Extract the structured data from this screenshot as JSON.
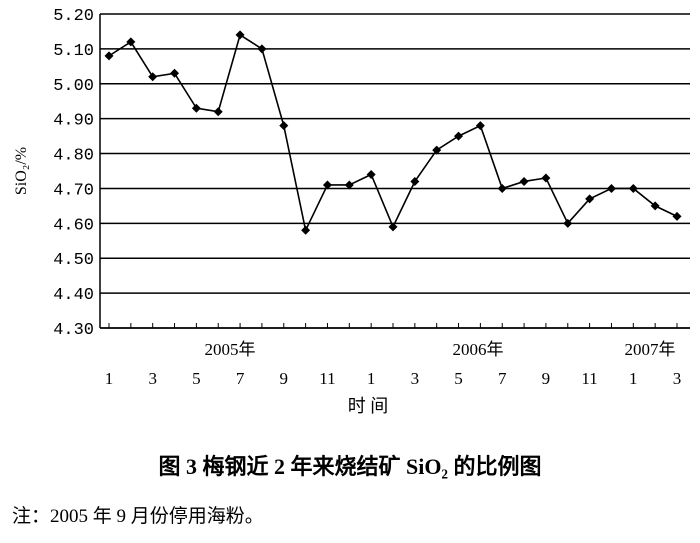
{
  "chart_data": {
    "type": "line",
    "categories": [
      "1",
      null,
      "3",
      null,
      "5",
      null,
      "7",
      null,
      "9",
      null,
      "11",
      null,
      "1",
      null,
      "3",
      null,
      "5",
      null,
      "7",
      null,
      "9",
      null,
      "11",
      null,
      "1",
      null,
      "3"
    ],
    "series": [
      {
        "color": "#000000",
        "values": [
          5.08,
          5.12,
          5.02,
          5.03,
          4.93,
          4.92,
          5.14,
          5.1,
          4.88,
          4.58,
          4.71,
          4.71,
          4.74,
          4.59,
          4.72,
          4.81,
          4.85,
          4.88,
          4.7,
          4.72,
          4.73,
          4.6,
          4.67,
          4.7,
          4.7,
          4.65,
          4.62
        ]
      }
    ],
    "ylim": [
      4.3,
      5.2
    ],
    "yticks": [
      {
        "value": 4.3,
        "label": "4.30"
      },
      {
        "value": 4.4,
        "label": "4.40"
      },
      {
        "value": 4.5,
        "label": "4.50"
      },
      {
        "value": 4.6,
        "label": "4.60"
      },
      {
        "value": 4.7,
        "label": "4.70"
      },
      {
        "value": 4.8,
        "label": "4.80"
      },
      {
        "value": 4.9,
        "label": "4.90"
      },
      {
        "value": 5.0,
        "label": "5.00"
      },
      {
        "value": 5.1,
        "label": "5.10"
      },
      {
        "value": 5.2,
        "label": "5.20"
      }
    ],
    "grid": true,
    "ylabel": "SiO₂/%",
    "xlabel": "时 间",
    "year_labels": [
      "2005年",
      "2006年",
      "2007年"
    ],
    "caption": "图 3   梅钢近 2 年来烧结矿 SiO₂ 的比例图",
    "note": "注：2005 年 9 月份停用海粉。"
  }
}
